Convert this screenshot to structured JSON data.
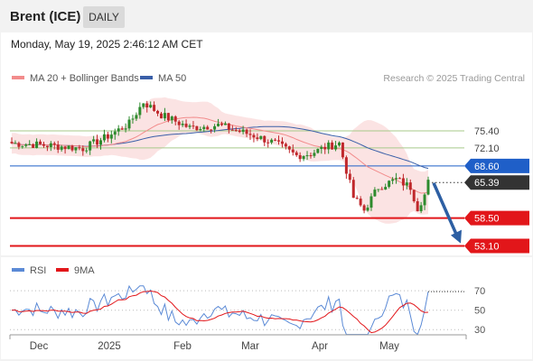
{
  "header": {
    "symbol": "Brent (ICE)",
    "timeframe": "DAILY",
    "datetime": "Monday, May 19, 2025 2:46:12 AM CET"
  },
  "legend": {
    "ma20": "MA 20 + Bollinger Bands",
    "ma50": "MA 50",
    "credit": "Research © 2025 Trading Central"
  },
  "rsi_legend": {
    "rsi": "RSI",
    "ma9": "9MA"
  },
  "colors": {
    "ma20": "#f28c8c",
    "ma50": "#3a5fa8",
    "bands": "#fadede",
    "up": "#2e8b2e",
    "down": "#c0282c",
    "support": "#e2161a",
    "pivot": "#1f5fc8",
    "resistance": "#a7c98a",
    "rsi": "#5b8ad6",
    "rsi_ma": "#e2161a",
    "arrow": "#2d5fa3",
    "last": "#333333"
  },
  "chart_data": {
    "type": "candlestick",
    "x_ticks": [
      "Dec",
      "2025",
      "Feb",
      "Mar",
      "Apr",
      "May"
    ],
    "ylim": [
      51.2,
      81.3
    ],
    "levels": [
      {
        "label": "75.40",
        "value": 75.4,
        "kind": "resistance"
      },
      {
        "label": "72.10",
        "value": 72.1,
        "kind": "resistance"
      },
      {
        "label": "68.60",
        "value": 68.6,
        "kind": "pivot"
      },
      {
        "label": "65.39",
        "value": 65.39,
        "kind": "last"
      },
      {
        "label": "58.50",
        "value": 58.5,
        "kind": "support"
      },
      {
        "label": "53.10",
        "value": 53.1,
        "kind": "support"
      }
    ],
    "arrow": {
      "from": 65.3,
      "to": 53.6
    },
    "rsi": {
      "ticks": [
        "70",
        "50",
        "30"
      ],
      "ylim": [
        20,
        85
      ]
    }
  }
}
